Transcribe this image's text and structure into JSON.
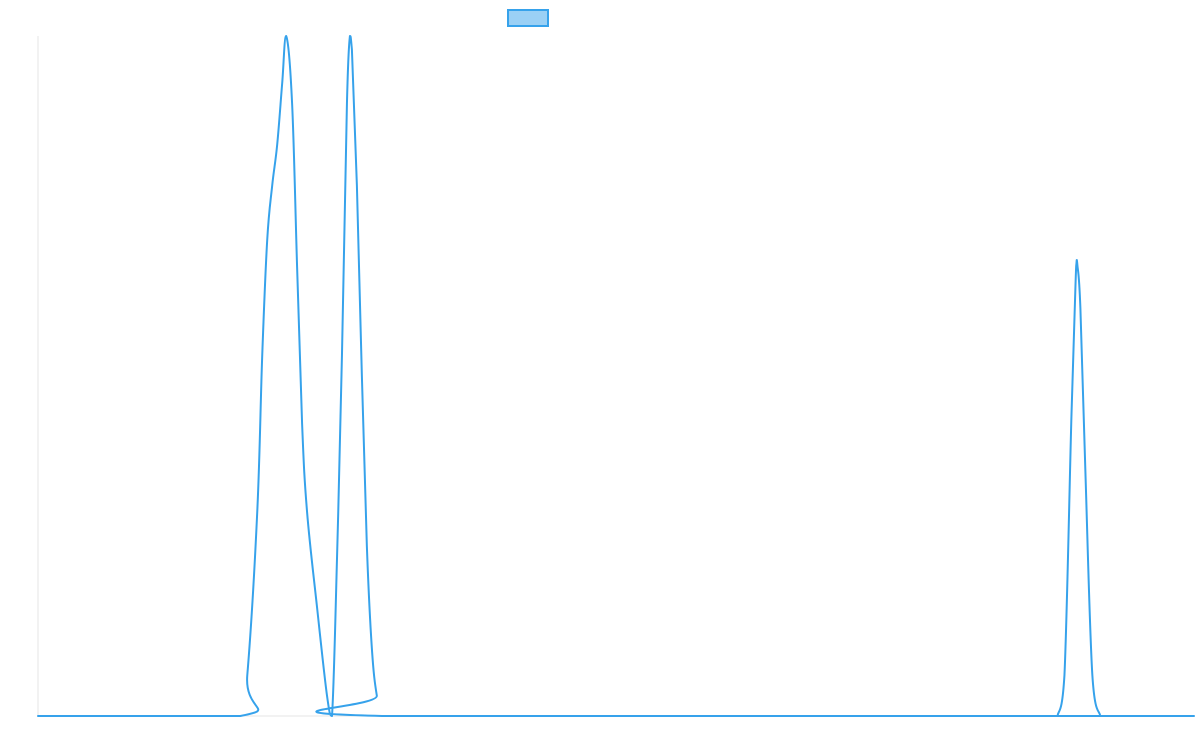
{
  "colors": {
    "series_line": "#36A2EB",
    "series_fill": "#9AD0F5",
    "axis_line": "#E6E6E6",
    "background": "#FFFFFF"
  },
  "chart_data": {
    "type": "line",
    "title": "",
    "xlabel": "",
    "ylabel": "",
    "grid": false,
    "legend_position": "top",
    "xlim": [
      0,
      116
    ],
    "ylim": [
      0,
      1
    ],
    "series": [
      {
        "name": "",
        "x": [
          0,
          20.3,
          21,
          22,
          22.5,
          23,
          23.5,
          24,
          24.5,
          24.9,
          25.5,
          26,
          26.5,
          27,
          28,
          29,
          29.5,
          30,
          30.5,
          31,
          31.3,
          31.5,
          32,
          32.5,
          33,
          33.5,
          34,
          34.6,
          116
        ],
        "y": [
          0,
          0,
          0.06,
          0.3,
          0.53,
          0.7,
          0.78,
          0.84,
          0.93,
          1.0,
          0.9,
          0.66,
          0.43,
          0.3,
          0.16,
          0.03,
          0.0,
          0.23,
          0.53,
          0.9,
          1.0,
          0.98,
          0.78,
          0.5,
          0.25,
          0.1,
          0.03,
          0.0,
          0
        ]
      },
      {
        "name": "",
        "x": [
          102.3,
          103,
          103.7,
          104.1,
          104.2,
          104.3,
          104.6,
          105.1,
          105.8,
          106.6
        ],
        "y": [
          0,
          0.06,
          0.44,
          0.63,
          0.665,
          0.663,
          0.6,
          0.36,
          0.06,
          0
        ]
      }
    ]
  }
}
